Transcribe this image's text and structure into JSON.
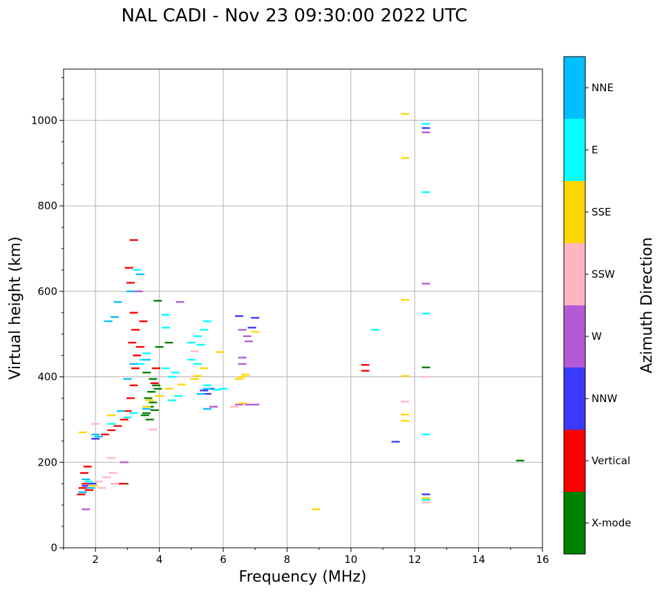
{
  "chart_data": {
    "type": "scatter",
    "title": "NAL CADI - Nov 23 09:30:00 2022 UTC",
    "xlabel": "Frequency (MHz)",
    "ylabel": "Virtual height (km)",
    "xlim": [
      1,
      16
    ],
    "ylim": [
      0,
      1120
    ],
    "x_ticks": [
      2,
      4,
      6,
      8,
      10,
      12,
      14,
      16
    ],
    "y_ticks": [
      0,
      200,
      400,
      600,
      800,
      1000
    ],
    "x_tick_labels": [
      "2",
      "4",
      "6",
      "8",
      "10",
      "12",
      "14",
      "16"
    ],
    "y_tick_labels": [
      "0",
      "200",
      "400",
      "600",
      "800",
      "1000"
    ],
    "grid": true,
    "colorbar": {
      "label": "Azimuth Direction",
      "categories": [
        {
          "name": "X-mode",
          "color": "#008000"
        },
        {
          "name": "Vertical",
          "color": "#ff0000"
        },
        {
          "name": "NNW",
          "color": "#3a3aff"
        },
        {
          "name": "W",
          "color": "#b55ad6"
        },
        {
          "name": "SSW",
          "color": "#ffb6c1"
        },
        {
          "name": "SSE",
          "color": "#ffd700"
        },
        {
          "name": "E",
          "color": "#00ffff"
        },
        {
          "name": "NNE",
          "color": "#00bfff"
        }
      ]
    },
    "series": [
      {
        "name": "X-mode",
        "points": [
          [
            2.9,
            150
          ],
          [
            3.6,
            315
          ],
          [
            3.7,
            330
          ],
          [
            3.8,
            340
          ],
          [
            3.65,
            350
          ],
          [
            3.75,
            365
          ],
          [
            3.9,
            380
          ],
          [
            3.85,
            322
          ],
          [
            3.55,
            310
          ],
          [
            3.7,
            300
          ],
          [
            3.95,
            372
          ],
          [
            3.8,
            395
          ],
          [
            4.0,
            470
          ],
          [
            3.95,
            578
          ],
          [
            4.3,
            480
          ],
          [
            3.6,
            410
          ],
          [
            12.35,
            422
          ],
          [
            15.3,
            204
          ]
        ]
      },
      {
        "name": "Vertical",
        "points": [
          [
            1.6,
            140
          ],
          [
            1.7,
            150
          ],
          [
            1.8,
            135
          ],
          [
            1.65,
            175
          ],
          [
            1.75,
            190
          ],
          [
            1.55,
            125
          ],
          [
            2.3,
            265
          ],
          [
            2.5,
            275
          ],
          [
            2.7,
            285
          ],
          [
            2.9,
            300
          ],
          [
            3.0,
            320
          ],
          [
            3.1,
            350
          ],
          [
            3.2,
            380
          ],
          [
            3.25,
            420
          ],
          [
            3.3,
            450
          ],
          [
            3.15,
            480
          ],
          [
            3.25,
            510
          ],
          [
            3.2,
            550
          ],
          [
            3.3,
            600
          ],
          [
            3.1,
            620
          ],
          [
            3.05,
            655
          ],
          [
            3.2,
            720
          ],
          [
            3.4,
            470
          ],
          [
            3.5,
            530
          ],
          [
            3.9,
            420
          ],
          [
            3.85,
            385
          ],
          [
            2.85,
            150
          ],
          [
            10.45,
            428
          ],
          [
            10.45,
            414
          ]
        ]
      },
      {
        "name": "NNW",
        "points": [
          [
            1.7,
            145
          ],
          [
            1.9,
            150
          ],
          [
            2.0,
            255
          ],
          [
            5.5,
            360
          ],
          [
            5.4,
            368
          ],
          [
            5.6,
            372
          ],
          [
            6.5,
            542
          ],
          [
            7.0,
            538
          ],
          [
            12.35,
            125
          ],
          [
            11.4,
            248
          ],
          [
            12.35,
            982
          ],
          [
            6.9,
            515
          ]
        ]
      },
      {
        "name": "W",
        "points": [
          [
            1.7,
            90
          ],
          [
            2.9,
            200
          ],
          [
            3.35,
            600
          ],
          [
            4.65,
            575
          ],
          [
            6.5,
            335
          ],
          [
            6.8,
            335
          ],
          [
            7.0,
            335
          ],
          [
            6.6,
            445
          ],
          [
            6.8,
            483
          ],
          [
            6.75,
            495
          ],
          [
            6.6,
            430
          ],
          [
            6.6,
            510
          ],
          [
            12.35,
            618
          ],
          [
            12.35,
            972
          ],
          [
            5.7,
            330
          ]
        ]
      },
      {
        "name": "SSW",
        "points": [
          [
            1.9,
            145
          ],
          [
            2.1,
            155
          ],
          [
            2.35,
            165
          ],
          [
            2.55,
            175
          ],
          [
            2.5,
            210
          ],
          [
            2.6,
            150
          ],
          [
            2.2,
            140
          ],
          [
            3.8,
            277
          ],
          [
            5.1,
            460
          ],
          [
            6.35,
            330
          ],
          [
            11.7,
            342
          ],
          [
            12.35,
            106
          ],
          [
            12.35,
            400
          ],
          [
            2.0,
            290
          ]
        ]
      },
      {
        "name": "SSE",
        "points": [
          [
            1.6,
            270
          ],
          [
            1.95,
            145
          ],
          [
            2.5,
            310
          ],
          [
            3.6,
            330
          ],
          [
            3.7,
            345
          ],
          [
            4.0,
            355
          ],
          [
            4.3,
            372
          ],
          [
            4.7,
            382
          ],
          [
            5.1,
            395
          ],
          [
            5.2,
            402
          ],
          [
            5.4,
            420
          ],
          [
            6.5,
            395
          ],
          [
            6.6,
            400
          ],
          [
            6.7,
            405
          ],
          [
            6.6,
            338
          ],
          [
            7.0,
            505
          ],
          [
            8.9,
            90
          ],
          [
            11.7,
            297
          ],
          [
            11.7,
            312
          ],
          [
            11.7,
            402
          ],
          [
            11.7,
            580
          ],
          [
            11.7,
            912
          ],
          [
            11.7,
            1015
          ],
          [
            12.35,
            116
          ],
          [
            5.9,
            458
          ]
        ]
      },
      {
        "name": "E",
        "points": [
          [
            1.8,
            155
          ],
          [
            2.5,
            290
          ],
          [
            3.0,
            305
          ],
          [
            3.2,
            315
          ],
          [
            3.4,
            430
          ],
          [
            3.5,
            440
          ],
          [
            3.6,
            455
          ],
          [
            4.2,
            420
          ],
          [
            4.4,
            400
          ],
          [
            4.5,
            410
          ],
          [
            5.0,
            480
          ],
          [
            5.2,
            495
          ],
          [
            5.4,
            510
          ],
          [
            5.5,
            530
          ],
          [
            5.3,
            475
          ],
          [
            5.0,
            440
          ],
          [
            5.2,
            430
          ],
          [
            5.5,
            380
          ],
          [
            5.8,
            370
          ],
          [
            4.4,
            345
          ],
          [
            4.6,
            355
          ],
          [
            3.3,
            650
          ],
          [
            10.75,
            510
          ],
          [
            12.35,
            548
          ],
          [
            12.35,
            832
          ],
          [
            12.35,
            992
          ],
          [
            12.35,
            265
          ],
          [
            12.35,
            112
          ],
          [
            4.2,
            545
          ],
          [
            4.2,
            515
          ],
          [
            6.0,
            372
          ]
        ]
      },
      {
        "name": "NNE",
        "points": [
          [
            1.6,
            130
          ],
          [
            1.7,
            160
          ],
          [
            1.85,
            140
          ],
          [
            2.0,
            265
          ],
          [
            2.1,
            260
          ],
          [
            2.4,
            530
          ],
          [
            2.6,
            540
          ],
          [
            2.7,
            575
          ],
          [
            2.8,
            320
          ],
          [
            3.0,
            395
          ],
          [
            3.2,
            430
          ],
          [
            3.4,
            640
          ],
          [
            3.6,
            440
          ],
          [
            5.5,
            325
          ],
          [
            5.3,
            360
          ],
          [
            5.5,
            372
          ],
          [
            3.6,
            325
          ],
          [
            3.1,
            600
          ]
        ]
      }
    ]
  }
}
